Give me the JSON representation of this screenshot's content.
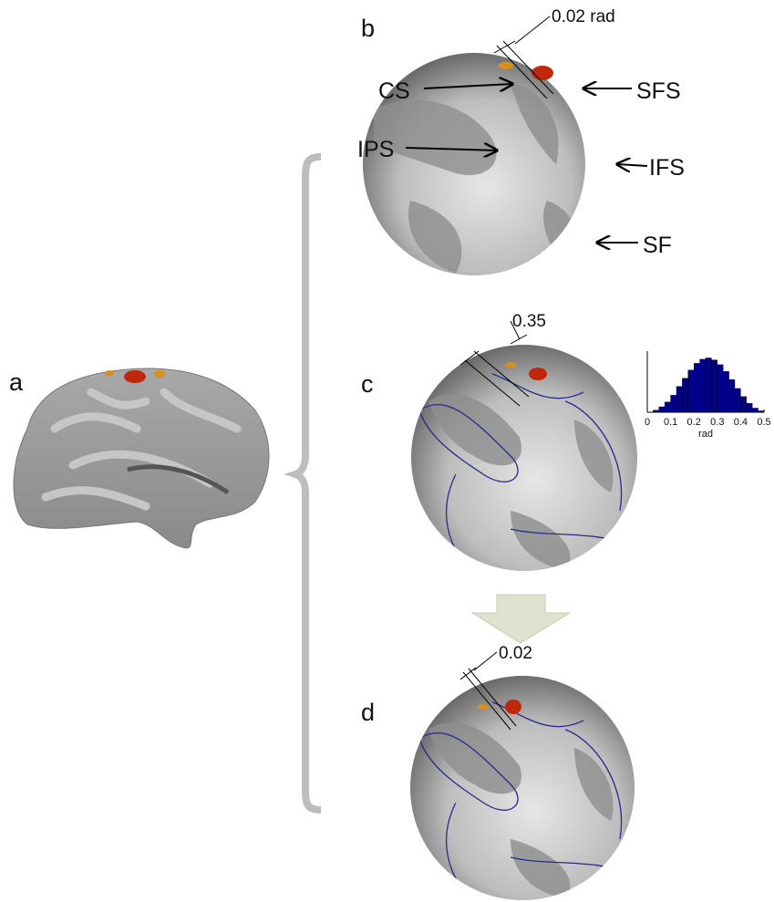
{
  "panels": {
    "a": "a",
    "b": "b",
    "c": "c",
    "d": "d"
  },
  "annotations": {
    "b_angle": "0.02 rad",
    "c_angle": "0.35",
    "d_angle": "0.02",
    "labels": [
      "CS",
      "SFS",
      "IPS",
      "IFS",
      "SF"
    ]
  },
  "chart_data": {
    "type": "histogram",
    "xlabel": "rad",
    "color": "#00008b",
    "bins": [
      0.025,
      0.05,
      0.075,
      0.1,
      0.125,
      0.15,
      0.175,
      0.2,
      0.225,
      0.25,
      0.275,
      0.3,
      0.325,
      0.35,
      0.375,
      0.4,
      0.425,
      0.45,
      0.475,
      0.5
    ],
    "counts": [
      0.3,
      0.8,
      1.5,
      2.5,
      3.8,
      5,
      6.2,
      7.2,
      7.8,
      8,
      7.7,
      7,
      6,
      4.8,
      3.5,
      2.3,
      1.3,
      0.6,
      0.2
    ],
    "xlim": [
      0,
      0.5
    ],
    "ylim": [
      0,
      9
    ],
    "xticks": [
      0,
      0.1,
      0.2,
      0.3,
      0.4,
      0.5
    ]
  }
}
